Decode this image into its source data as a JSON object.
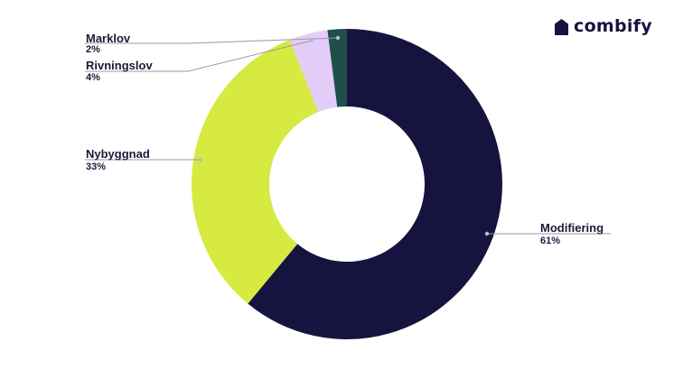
{
  "brand": {
    "name": "combify",
    "icon": "house-icon",
    "color": "#16143f"
  },
  "chart_data": {
    "type": "pie",
    "variant": "donut",
    "title": "",
    "slices": [
      {
        "label": "Modifiering",
        "pct_label": "61%",
        "value": 61,
        "color": "#16143f"
      },
      {
        "label": "Nybyggnad",
        "pct_label": "33%",
        "value": 33,
        "color": "#d6ea41"
      },
      {
        "label": "Rivningslov",
        "pct_label": "4%",
        "value": 4,
        "color": "#e3ccf7"
      },
      {
        "label": "Marklov",
        "pct_label": "2%",
        "value": 2,
        "color": "#1f4f4c"
      }
    ],
    "legend": "none",
    "labels": "outside-with-leader-lines"
  }
}
